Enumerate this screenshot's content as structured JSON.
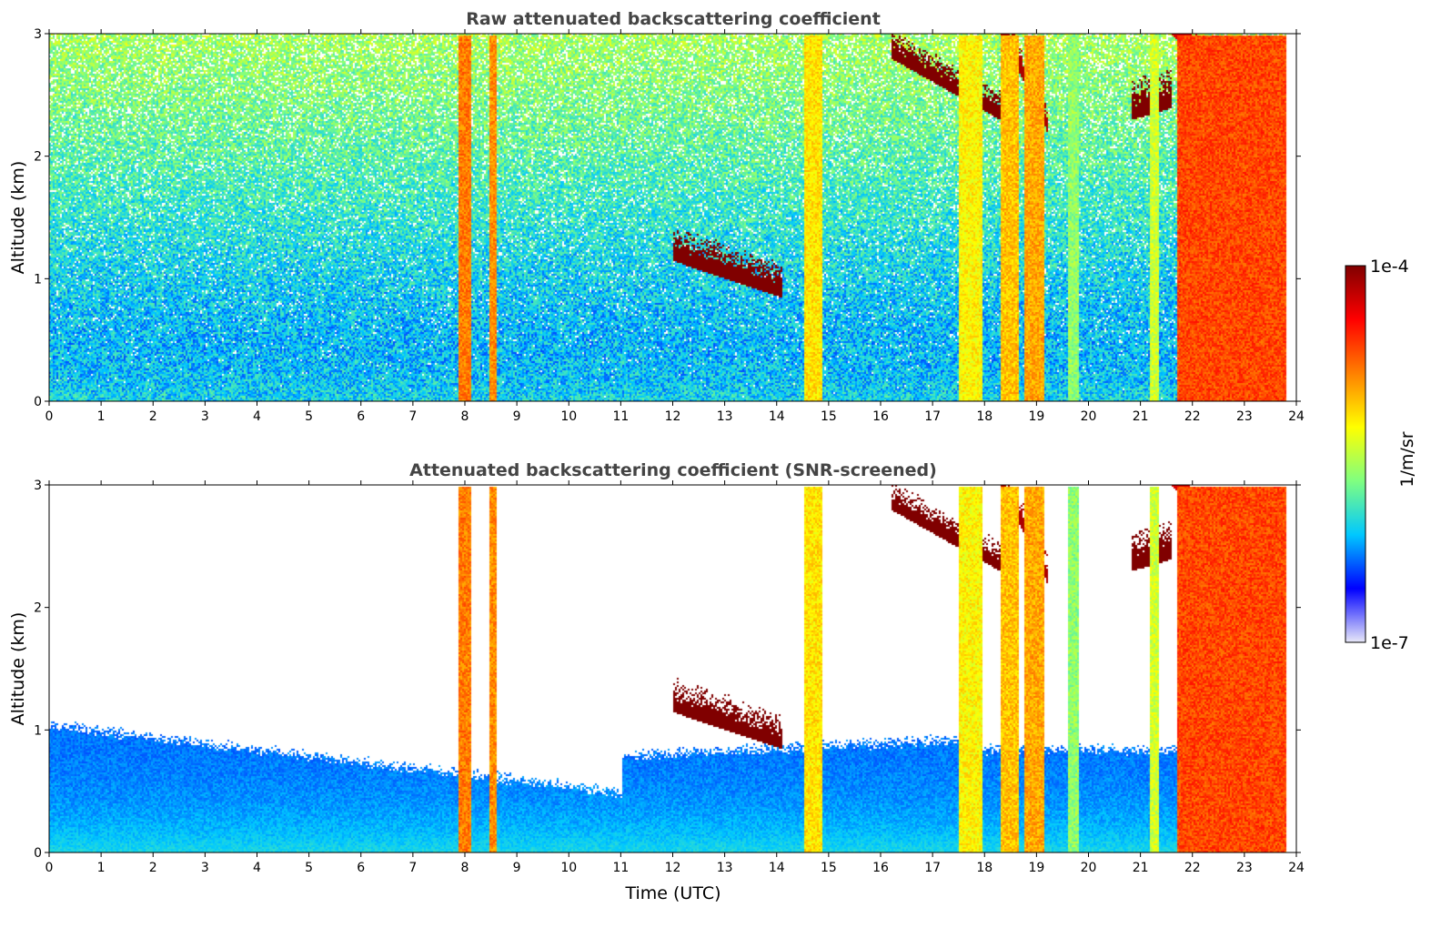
{
  "chart_data": [
    {
      "type": "heatmap",
      "title": "Raw attenuated backscattering coefficient",
      "xlabel": "",
      "ylabel": "Altitude (km)",
      "xlim": [
        0,
        24
      ],
      "ylim": [
        0,
        3
      ],
      "x_ticks": [
        "0",
        "1",
        "2",
        "3",
        "4",
        "5",
        "6",
        "7",
        "8",
        "9",
        "10",
        "11",
        "12",
        "13",
        "14",
        "15",
        "16",
        "17",
        "18",
        "19",
        "20",
        "21",
        "22",
        "23",
        "24"
      ],
      "y_ticks": [
        "0",
        "1",
        "2",
        "3"
      ],
      "screened": false
    },
    {
      "type": "heatmap",
      "title": "Attenuated backscattering coefficient (SNR-screened)",
      "xlabel": "Time (UTC)",
      "ylabel": "Altitude (km)",
      "xlim": [
        0,
        24
      ],
      "ylim": [
        0,
        3
      ],
      "x_ticks": [
        "0",
        "1",
        "2",
        "3",
        "4",
        "5",
        "6",
        "7",
        "8",
        "9",
        "10",
        "11",
        "12",
        "13",
        "14",
        "15",
        "16",
        "17",
        "18",
        "19",
        "20",
        "21",
        "22",
        "23",
        "24"
      ],
      "y_ticks": [
        "0",
        "1",
        "2",
        "3"
      ],
      "screened": true
    }
  ],
  "colorbar": {
    "label": "1/m/sr",
    "max_label": "1e-4",
    "min_label": "1e-7",
    "scale": "log",
    "colormap": "jet",
    "colors": [
      "#e8e8f8",
      "#0000ff",
      "#00c8ff",
      "#80ff80",
      "#ffff00",
      "#ff8000",
      "#ff0000",
      "#800000"
    ]
  },
  "cloud_layers": [
    {
      "x0": 12.0,
      "x1": 14.1,
      "base_start": 1.15,
      "base_end": 0.85,
      "thickness": 0.3,
      "intensity": 1.0
    },
    {
      "x0": 16.2,
      "x1": 18.3,
      "base_start": 2.8,
      "base_end": 2.3,
      "thickness": 0.25,
      "intensity": 1.0
    },
    {
      "x0": 18.3,
      "x1": 19.2,
      "base_start": 3.0,
      "base_end": 2.2,
      "thickness": 0.25,
      "intensity": 0.95
    },
    {
      "x0": 20.8,
      "x1": 21.6,
      "base_start": 2.3,
      "base_end": 2.4,
      "thickness": 0.35,
      "intensity": 1.0
    },
    {
      "x0": 21.6,
      "x1": 22.6,
      "base_start": 3.0,
      "base_end": 2.4,
      "thickness": 0.4,
      "intensity": 0.9
    }
  ],
  "precip_columns": [
    {
      "x0": 7.85,
      "x1": 8.1,
      "intensity": 0.72
    },
    {
      "x0": 8.45,
      "x1": 8.6,
      "intensity": 0.7
    },
    {
      "x0": 14.5,
      "x1": 14.85,
      "intensity": 0.6
    },
    {
      "x0": 17.5,
      "x1": 17.95,
      "intensity": 0.58
    },
    {
      "x0": 18.3,
      "x1": 18.65,
      "intensity": 0.64
    },
    {
      "x0": 18.75,
      "x1": 19.15,
      "intensity": 0.67
    },
    {
      "x0": 19.6,
      "x1": 19.8,
      "intensity": 0.45
    },
    {
      "x0": 21.15,
      "x1": 21.35,
      "intensity": 0.52
    },
    {
      "x0": 21.7,
      "x1": 23.8,
      "intensity": 0.78
    }
  ]
}
